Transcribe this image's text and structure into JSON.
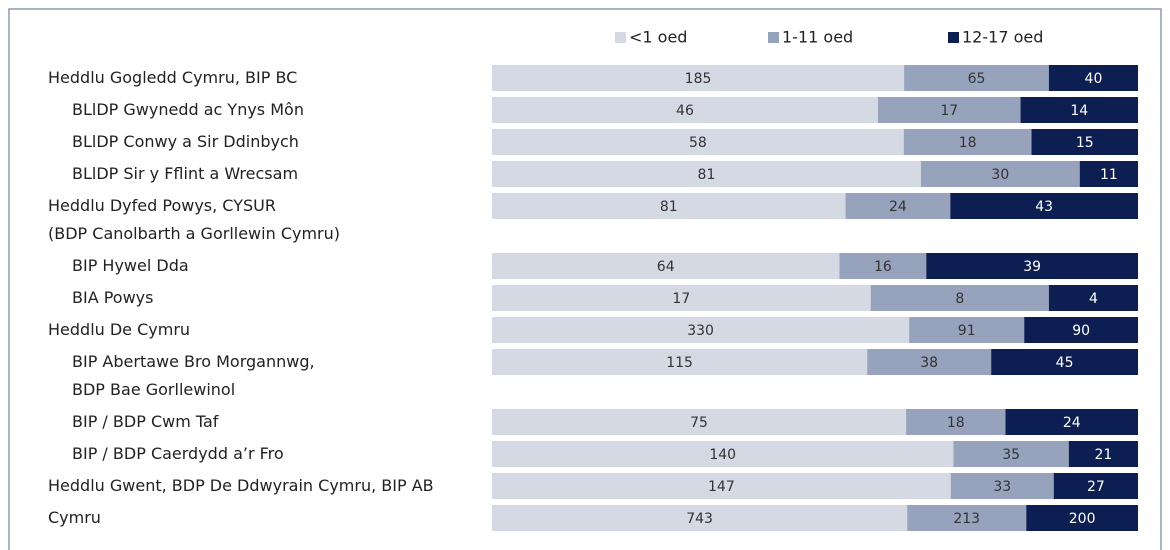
{
  "chart_data": {
    "type": "stacked_bar_100",
    "categories": [
      "Heddlu Gogledd Cymru, BIP BC",
      "BLlDP Gwynedd ac Ynys Môn",
      "BLlDP Conwy a Sir Ddinbych",
      "BLlDP Sir y Fflint a Wrecsam",
      "Heddlu Dyfed Powys, CYSUR\n(BDP Canolbarth a Gorllewin Cymru)",
      "BIP Hywel Dda",
      "BIA Powys",
      "Heddlu De Cymru",
      "BIP Abertawe Bro Morgannwg,\nBDP Bae Gorllewinol",
      "BIP / BDP Cwm Taf",
      "BIP / BDP Caerdydd a’r Fro",
      "Heddlu Gwent, BDP De Ddwyrain Cymru, BIP AB",
      "Cymru"
    ],
    "series": [
      {
        "name": "<1 oed",
        "color": "#d5d9e4",
        "values": [
          185,
          46,
          58,
          81,
          81,
          64,
          17,
          330,
          115,
          75,
          140,
          147,
          743
        ]
      },
      {
        "name": "1-11 oed",
        "color": "#97a3bd",
        "values": [
          65,
          17,
          18,
          30,
          24,
          16,
          8,
          91,
          38,
          18,
          35,
          33,
          213
        ]
      },
      {
        "name": "12-17 oed",
        "color": "#0d1f52",
        "values": [
          40,
          14,
          15,
          11,
          43,
          39,
          4,
          90,
          45,
          24,
          21,
          27,
          200
        ]
      }
    ],
    "legend": "top"
  }
}
